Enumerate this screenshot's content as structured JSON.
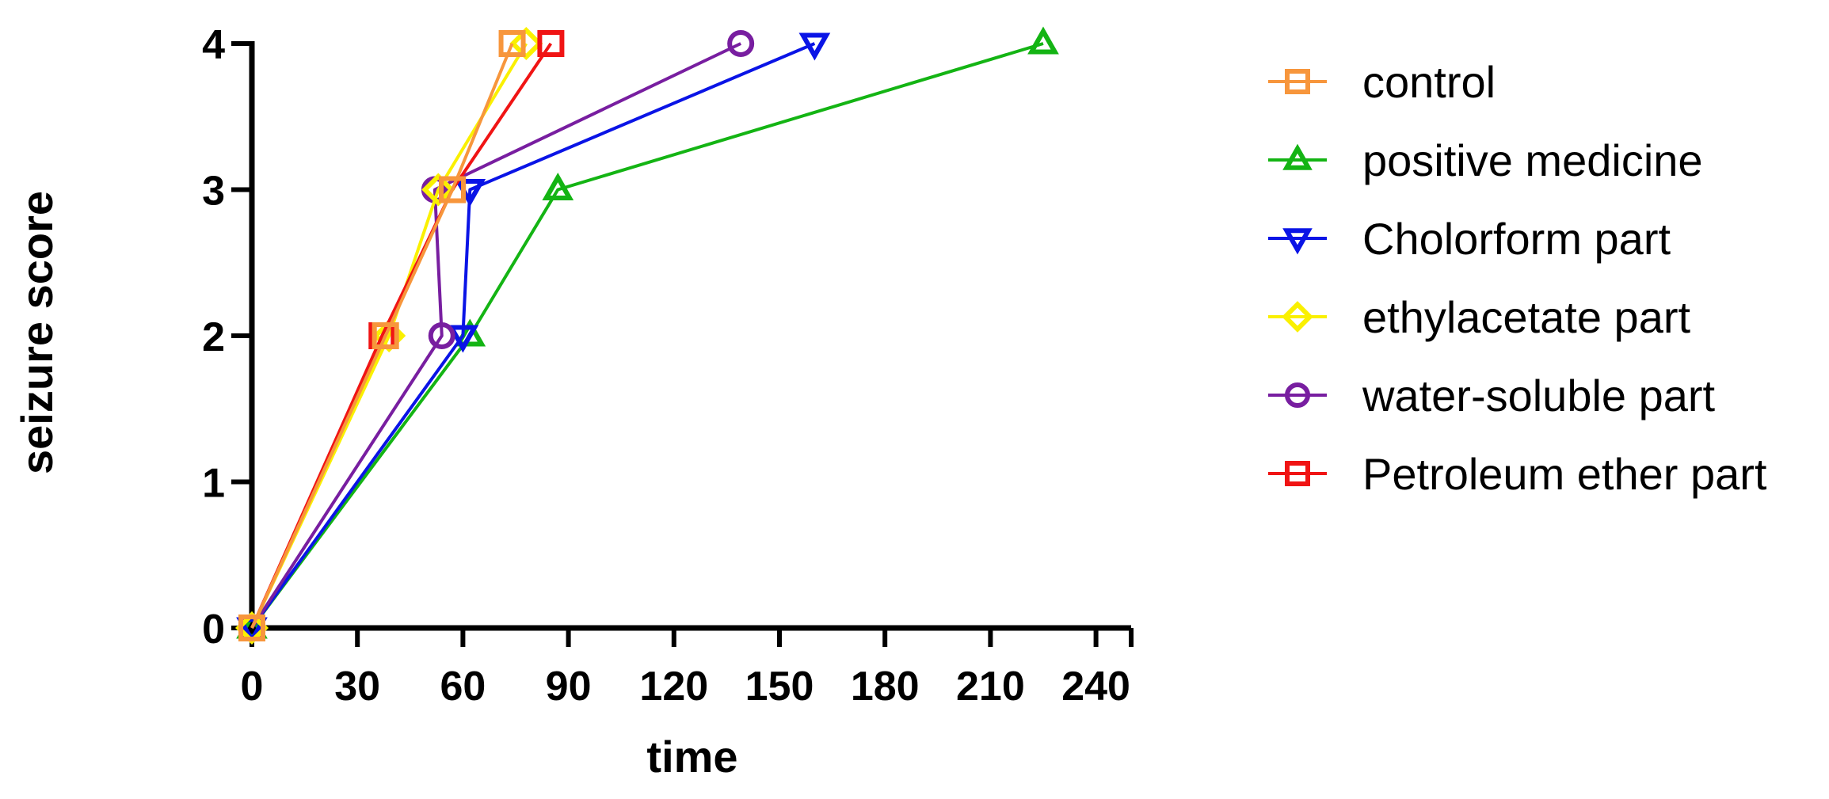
{
  "chart_data": {
    "type": "line",
    "title": "",
    "xlabel": "time",
    "ylabel": "seizure score",
    "xlim": [
      0,
      250
    ],
    "ylim": [
      0,
      4
    ],
    "xticks": [
      0,
      30,
      60,
      90,
      120,
      150,
      180,
      210,
      240
    ],
    "yticks": [
      0,
      1,
      2,
      3,
      4
    ],
    "grid": false,
    "legend_position": "right",
    "series": [
      {
        "name": "control",
        "color": "#F7963C",
        "marker": "square",
        "points": [
          [
            0,
            0
          ],
          [
            38,
            2
          ],
          [
            57,
            3
          ],
          [
            74,
            4
          ]
        ]
      },
      {
        "name": "positive medicine",
        "color": "#14B414",
        "marker": "triangle-up",
        "points": [
          [
            0,
            0
          ],
          [
            62,
            2
          ],
          [
            87,
            3
          ],
          [
            225,
            4
          ]
        ]
      },
      {
        "name": "Cholorform part",
        "color": "#0A14E6",
        "marker": "triangle-down",
        "points": [
          [
            0,
            0
          ],
          [
            60,
            2
          ],
          [
            62,
            3
          ],
          [
            160,
            4
          ]
        ]
      },
      {
        "name": "ethylacetate part",
        "color": "#FAF000",
        "marker": "diamond",
        "points": [
          [
            0,
            0
          ],
          [
            39,
            2
          ],
          [
            53,
            3
          ],
          [
            78,
            4
          ]
        ]
      },
      {
        "name": "water-soluble part",
        "color": "#781EA0",
        "marker": "circle",
        "points": [
          [
            0,
            0
          ],
          [
            54,
            2
          ],
          [
            52,
            3
          ],
          [
            139,
            4
          ]
        ]
      },
      {
        "name": "Petroleum ether part",
        "color": "#F01414",
        "marker": "square",
        "points": [
          [
            0,
            0
          ],
          [
            37,
            2
          ],
          [
            57,
            3
          ],
          [
            85,
            4
          ]
        ]
      }
    ]
  }
}
